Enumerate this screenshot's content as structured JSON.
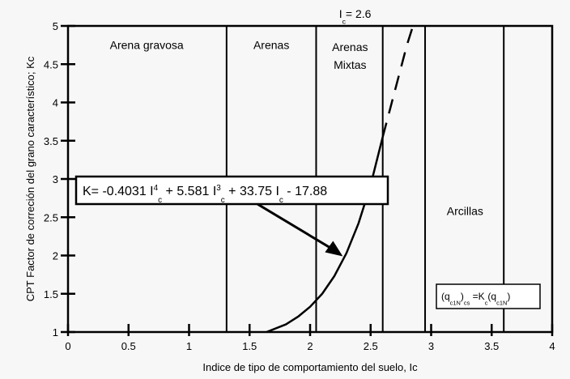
{
  "chart_data": {
    "type": "line",
    "xlabel": "Indice de tipo de comportamiento del suelo, Ic",
    "ylabel": "CPT Factor de correción del grano característico; Kc",
    "xlim": [
      0,
      4
    ],
    "ylim": [
      1,
      5
    ],
    "x_ticks": [
      "0",
      "0.5",
      "1",
      "1.5",
      "2",
      "2.5",
      "3",
      "3.5",
      "4"
    ],
    "y_ticks": [
      "1",
      "1.5",
      "2",
      "2.5",
      "3",
      "3.5",
      "4",
      "4.5",
      "5"
    ],
    "zone_boundaries": [
      1.31,
      2.05,
      2.6,
      2.95,
      3.6
    ],
    "zones": [
      {
        "label_lines": [
          "Arena gravosa"
        ],
        "x": 0.65,
        "y": 4.7
      },
      {
        "label_lines": [
          "Arenas"
        ],
        "x": 1.68,
        "y": 4.7
      },
      {
        "label_lines": [
          "Arenas",
          "Mixtas"
        ],
        "x": 2.33,
        "y": 4.67
      },
      {
        "label_lines": [
          "Arcillas"
        ],
        "x": 3.28,
        "y": 2.53
      }
    ],
    "equation": {
      "parts": [
        "K= -0.4031 I",
        "4",
        "c",
        " + 5.581 I",
        "3",
        "c",
        " + 33.75 I",
        "c",
        " - 17.88"
      ]
    },
    "ic_marker": {
      "parts": [
        "I",
        "c",
        "= 2.6"
      ]
    },
    "formula_box": {
      "parts": [
        "(q",
        "c1N",
        ")",
        "cs",
        " =K",
        "c",
        "(q",
        "c1N",
        ")"
      ]
    },
    "series": [
      {
        "type": "solid",
        "x": [
          1.64,
          1.8,
          1.9,
          2.0,
          2.1,
          2.2,
          2.3,
          2.4,
          2.5,
          2.6
        ],
        "y": [
          1.0,
          1.1,
          1.2,
          1.33,
          1.5,
          1.73,
          2.03,
          2.42,
          2.92,
          3.55
        ]
      },
      {
        "type": "dashed",
        "x": [
          2.6,
          2.7,
          2.8,
          2.85
        ],
        "y": [
          3.55,
          4.15,
          4.75,
          5.0
        ]
      }
    ],
    "grid": false
  }
}
